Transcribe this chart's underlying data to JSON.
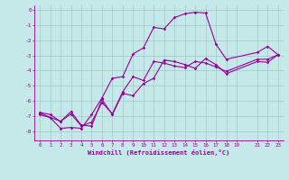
{
  "xlabel": "Windchill (Refroidissement éolien,°C)",
  "bg_color": "#c5e8e8",
  "line_color": "#990099",
  "grid_color": "#a0c8c8",
  "xlim": [
    -0.5,
    23.5
  ],
  "ylim": [
    -8.6,
    0.3
  ],
  "xticks": [
    0,
    1,
    2,
    3,
    4,
    5,
    6,
    7,
    8,
    9,
    10,
    11,
    12,
    13,
    14,
    15,
    16,
    17,
    18,
    19,
    21,
    22,
    23
  ],
  "yticks": [
    0,
    -1,
    -2,
    -3,
    -4,
    -5,
    -6,
    -7,
    -8
  ],
  "series1_x": [
    0,
    1,
    2,
    3,
    4,
    5,
    6,
    7,
    8,
    9,
    10,
    11,
    12,
    13,
    14,
    15,
    16,
    17,
    18,
    21,
    22,
    23
  ],
  "series1_y": [
    -6.9,
    -7.1,
    -7.8,
    -7.75,
    -7.8,
    -6.9,
    -5.8,
    -4.5,
    -4.4,
    -2.9,
    -2.5,
    -1.15,
    -1.25,
    -0.5,
    -0.25,
    -0.15,
    -0.2,
    -2.25,
    -3.25,
    -2.8,
    -2.4,
    -2.95
  ],
  "series2_x": [
    0,
    2,
    3,
    4,
    5,
    6,
    7,
    8,
    9,
    10,
    11,
    12,
    13,
    14,
    15,
    16,
    17,
    18,
    21,
    22,
    23
  ],
  "series2_y": [
    -6.8,
    -7.35,
    -6.7,
    -7.6,
    -7.65,
    -5.9,
    -6.9,
    -5.5,
    -5.65,
    -4.85,
    -4.5,
    -3.3,
    -3.4,
    -3.6,
    -3.85,
    -3.2,
    -3.6,
    -4.2,
    -3.4,
    -3.45,
    -2.95
  ],
  "series3_x": [
    0,
    1,
    2,
    3,
    4,
    5,
    6,
    7,
    8,
    9,
    10,
    11,
    12,
    13,
    14,
    15,
    16,
    17,
    18,
    21,
    22,
    23
  ],
  "series3_y": [
    -6.75,
    -6.9,
    -7.35,
    -6.85,
    -7.65,
    -7.4,
    -6.1,
    -6.85,
    -5.4,
    -4.4,
    -4.65,
    -3.4,
    -3.5,
    -3.7,
    -3.8,
    -3.4,
    -3.5,
    -3.75,
    -4.05,
    -3.25,
    -3.25,
    -2.95
  ],
  "marker_size": 1.8,
  "lw": 0.8,
  "tick_fontsize": 4.2,
  "xlabel_fontsize": 5.0
}
